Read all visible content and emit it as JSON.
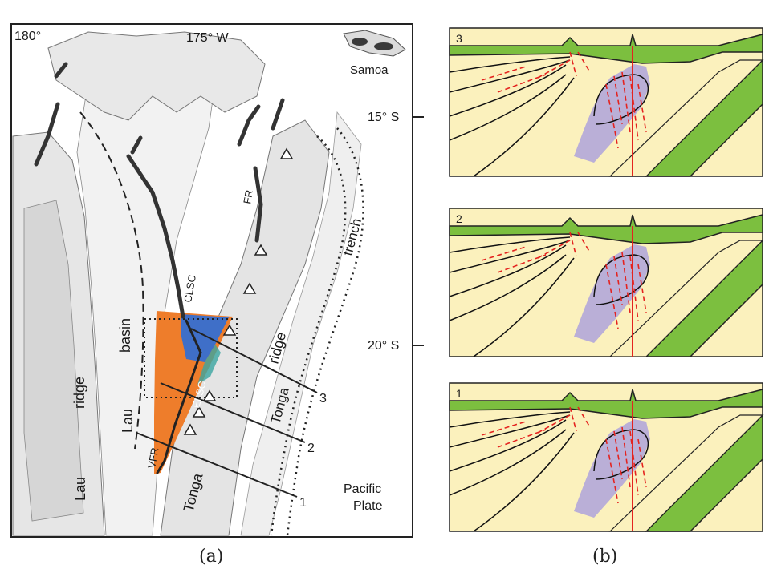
{
  "map": {
    "top_left_label": "180°",
    "top_mid_label": "175° W",
    "lat_15": "15° S",
    "lat_20": "20° S",
    "samoa": "Samoa",
    "lau_ridge_1": "Lau",
    "lau_ridge_2": "ridge",
    "lau_basin_1": "Lau",
    "lau_basin_2": "basin",
    "tonga_ridge_1": "Tonga",
    "tonga_ridge_2": "ridge",
    "tonga_trench_1": "Tonga",
    "tonga_trench_2": "trench",
    "clsc": "CLSC",
    "elsc": "ELSC",
    "vfr": "VFR",
    "fr": "FR",
    "pacific_1": "Pacific",
    "pacific_2": "Plate",
    "profile_1": "1",
    "profile_2": "2",
    "profile_3": "3"
  },
  "panels": [
    {
      "label": "3"
    },
    {
      "label": "2"
    },
    {
      "label": "1"
    }
  ],
  "captions": {
    "a": "(a)",
    "b": "(b)"
  },
  "colors": {
    "land": "#ececec",
    "ridge_deep": "#dcdcdc",
    "spreading": "#3a3a3a",
    "orange": "#ee7d2b",
    "blue": "#3f6fc8",
    "mantle": "#fbf1bd",
    "slab": "#7cbf3f",
    "melt": "#b2a7d9",
    "red": "#e4231f"
  }
}
